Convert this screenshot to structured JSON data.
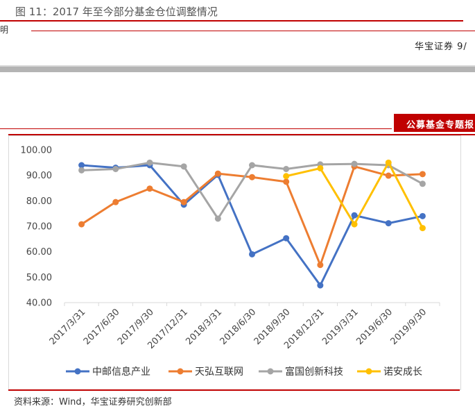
{
  "header": {
    "figure_title": "图 11：2017 年至今部分基金仓位调整情况",
    "left_fragment": "明",
    "right_fragment": "华宝证券  9/",
    "section_tag": "公募基金专题报"
  },
  "source_note": "资料来源：Wind，华宝证券研究创新部",
  "colors": {
    "accent_red": "#c00000",
    "gray_band": "#b4b4b4"
  },
  "chart_data": {
    "type": "line",
    "categories": [
      "2017/3/31",
      "2017/6/30",
      "2017/9/30",
      "2017/12/31",
      "2018/3/31",
      "2018/6/30",
      "2018/9/30",
      "2018/12/31",
      "2019/3/31",
      "2019/6/30",
      "2019/9/30"
    ],
    "ylim": [
      40,
      100
    ],
    "yticks": [
      "40.00",
      "50.00",
      "60.00",
      "70.00",
      "80.00",
      "90.00",
      "100.00"
    ],
    "grid": false,
    "legend_position": "bottom",
    "series": [
      {
        "name": "中邮信息产业",
        "color": "#4472c4",
        "values": [
          94.0,
          93.0,
          94.0,
          78.5,
          90.2,
          59.0,
          65.3,
          46.8,
          74.3,
          71.2,
          74.0
        ]
      },
      {
        "name": "天弘互联网",
        "color": "#ed7d31",
        "values": [
          70.8,
          79.5,
          84.8,
          79.5,
          90.7,
          89.3,
          87.5,
          54.8,
          93.5,
          89.9,
          90.5
        ]
      },
      {
        "name": "富国创新科技",
        "color": "#a5a5a5",
        "values": [
          92.0,
          92.5,
          95.0,
          93.5,
          73.0,
          94.0,
          92.5,
          94.3,
          94.5,
          94.0,
          86.7
        ]
      },
      {
        "name": "诺安成长",
        "color": "#ffc000",
        "values": [
          null,
          null,
          null,
          null,
          null,
          null,
          89.7,
          92.8,
          70.8,
          95.0,
          69.3
        ]
      }
    ]
  }
}
